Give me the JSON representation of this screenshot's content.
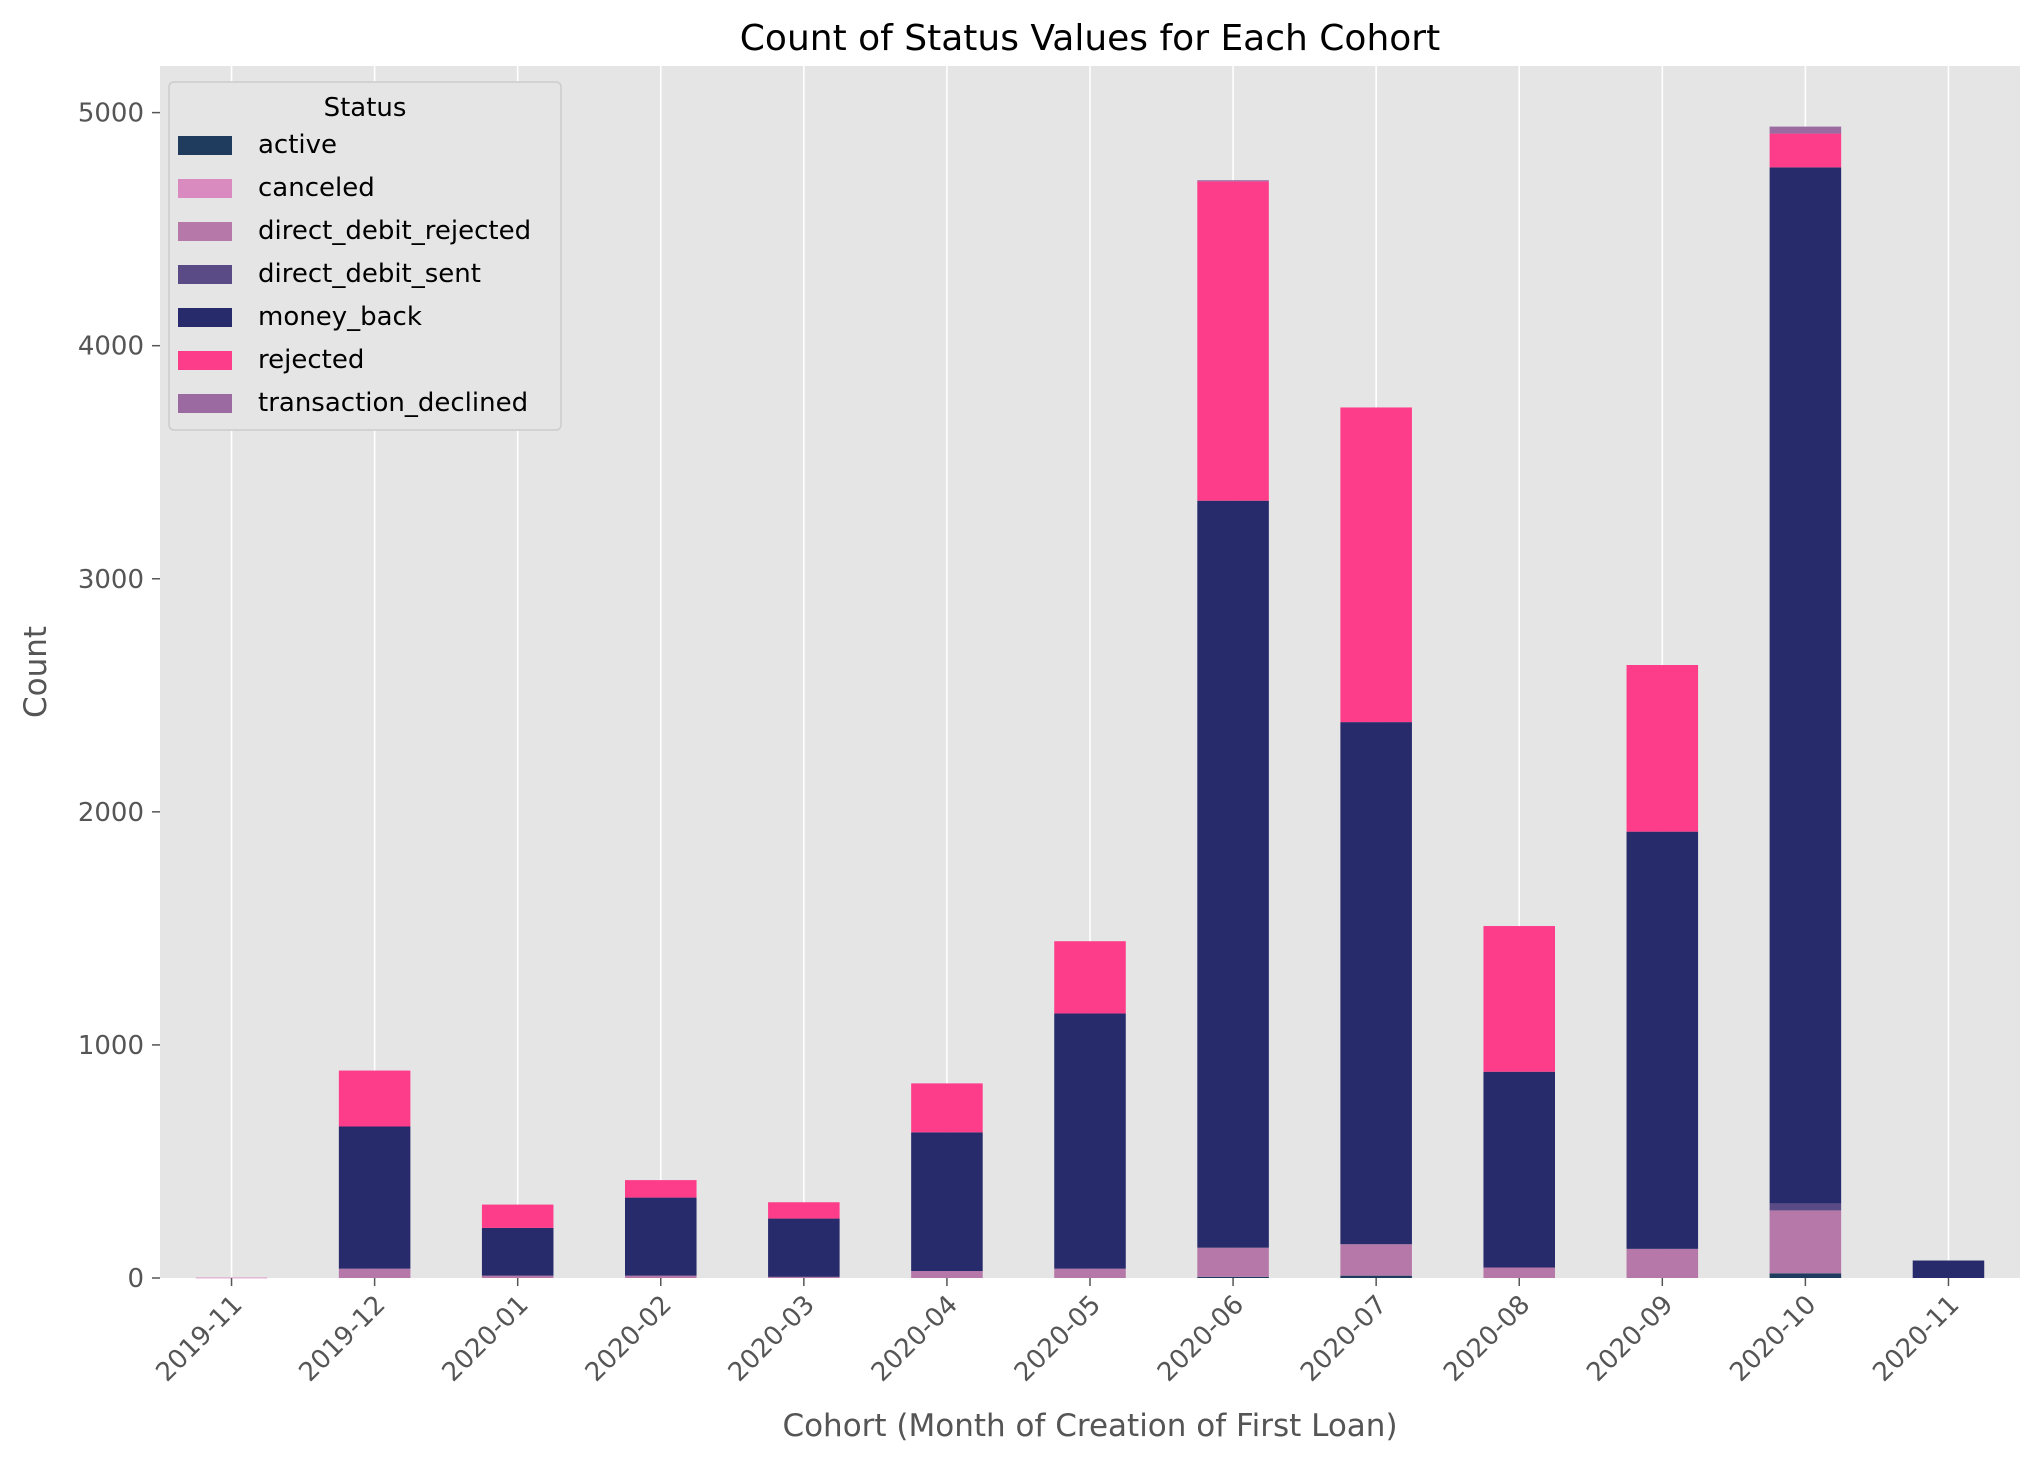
{
  "chart_data": {
    "type": "bar",
    "stacked": true,
    "title": "Count of Status Values for Each Cohort",
    "xlabel": "Cohort (Month of Creation of First Loan)",
    "ylabel": "Count",
    "ylim": [
      0,
      5200
    ],
    "yticks": [
      0,
      1000,
      2000,
      3000,
      4000,
      5000
    ],
    "grid": true,
    "legend": {
      "title": "Status",
      "placement": "top-left"
    },
    "categories": [
      "2019-11",
      "2019-12",
      "2020-01",
      "2020-02",
      "2020-03",
      "2020-04",
      "2020-05",
      "2020-06",
      "2020-07",
      "2020-08",
      "2020-09",
      "2020-10",
      "2020-11"
    ],
    "series": [
      {
        "name": "active",
        "color": "#1f3b5e",
        "values": [
          0,
          0,
          0,
          0,
          0,
          0,
          0,
          5,
          10,
          0,
          0,
          20,
          0
        ]
      },
      {
        "name": "canceled",
        "color": "#d98bbf",
        "values": [
          2,
          0,
          0,
          0,
          0,
          0,
          0,
          0,
          0,
          0,
          0,
          0,
          0
        ]
      },
      {
        "name": "direct_debit_rejected",
        "color": "#b678a8",
        "values": [
          0,
          40,
          10,
          10,
          5,
          30,
          40,
          125,
          135,
          45,
          125,
          270,
          0
        ]
      },
      {
        "name": "direct_debit_sent",
        "color": "#5a4a86",
        "values": [
          0,
          0,
          0,
          0,
          0,
          0,
          0,
          0,
          0,
          0,
          0,
          30,
          0
        ]
      },
      {
        "name": "money_back",
        "color": "#272b6b",
        "values": [
          0,
          610,
          205,
          335,
          250,
          595,
          1095,
          3205,
          2240,
          840,
          1790,
          4445,
          75
        ]
      },
      {
        "name": "rejected",
        "color": "#fe3d8a",
        "values": [
          0,
          240,
          100,
          75,
          70,
          210,
          310,
          1370,
          1350,
          625,
          715,
          145,
          0
        ]
      },
      {
        "name": "transaction_declined",
        "color": "#9a6aa0",
        "values": [
          0,
          0,
          0,
          0,
          0,
          0,
          0,
          5,
          0,
          0,
          0,
          30,
          0
        ]
      }
    ]
  }
}
